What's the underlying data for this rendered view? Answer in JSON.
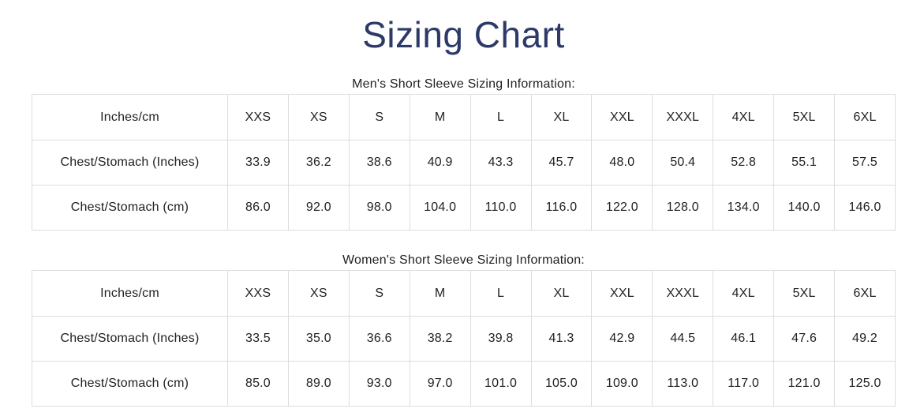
{
  "page": {
    "title": "Sizing Chart"
  },
  "colors": {
    "title": "#2d3a68",
    "text": "#212121",
    "border": "#dddddd",
    "background": "#ffffff"
  },
  "tables": [
    {
      "heading": "Men's Short Sleeve Sizing Information:",
      "columns": [
        "Inches/cm",
        "XXS",
        "XS",
        "S",
        "M",
        "L",
        "XL",
        "XXL",
        "XXXL",
        "4XL",
        "5XL",
        "6XL"
      ],
      "rows": [
        {
          "label": "Chest/Stomach (Inches)",
          "values": [
            "33.9",
            "36.2",
            "38.6",
            "40.9",
            "43.3",
            "45.7",
            "48.0",
            "50.4",
            "52.8",
            "55.1",
            "57.5"
          ]
        },
        {
          "label": "Chest/Stomach (cm)",
          "values": [
            "86.0",
            "92.0",
            "98.0",
            "104.0",
            "110.0",
            "116.0",
            "122.0",
            "128.0",
            "134.0",
            "140.0",
            "146.0"
          ]
        }
      ]
    },
    {
      "heading": "Women's Short Sleeve Sizing Information:",
      "columns": [
        "Inches/cm",
        "XXS",
        "XS",
        "S",
        "M",
        "L",
        "XL",
        "XXL",
        "XXXL",
        "4XL",
        "5XL",
        "6XL"
      ],
      "rows": [
        {
          "label": "Chest/Stomach (Inches)",
          "values": [
            "33.5",
            "35.0",
            "36.6",
            "38.2",
            "39.8",
            "41.3",
            "42.9",
            "44.5",
            "46.1",
            "47.6",
            "49.2"
          ]
        },
        {
          "label": "Chest/Stomach (cm)",
          "values": [
            "85.0",
            "89.0",
            "93.0",
            "97.0",
            "101.0",
            "105.0",
            "109.0",
            "113.0",
            "117.0",
            "121.0",
            "125.0"
          ]
        }
      ]
    }
  ]
}
